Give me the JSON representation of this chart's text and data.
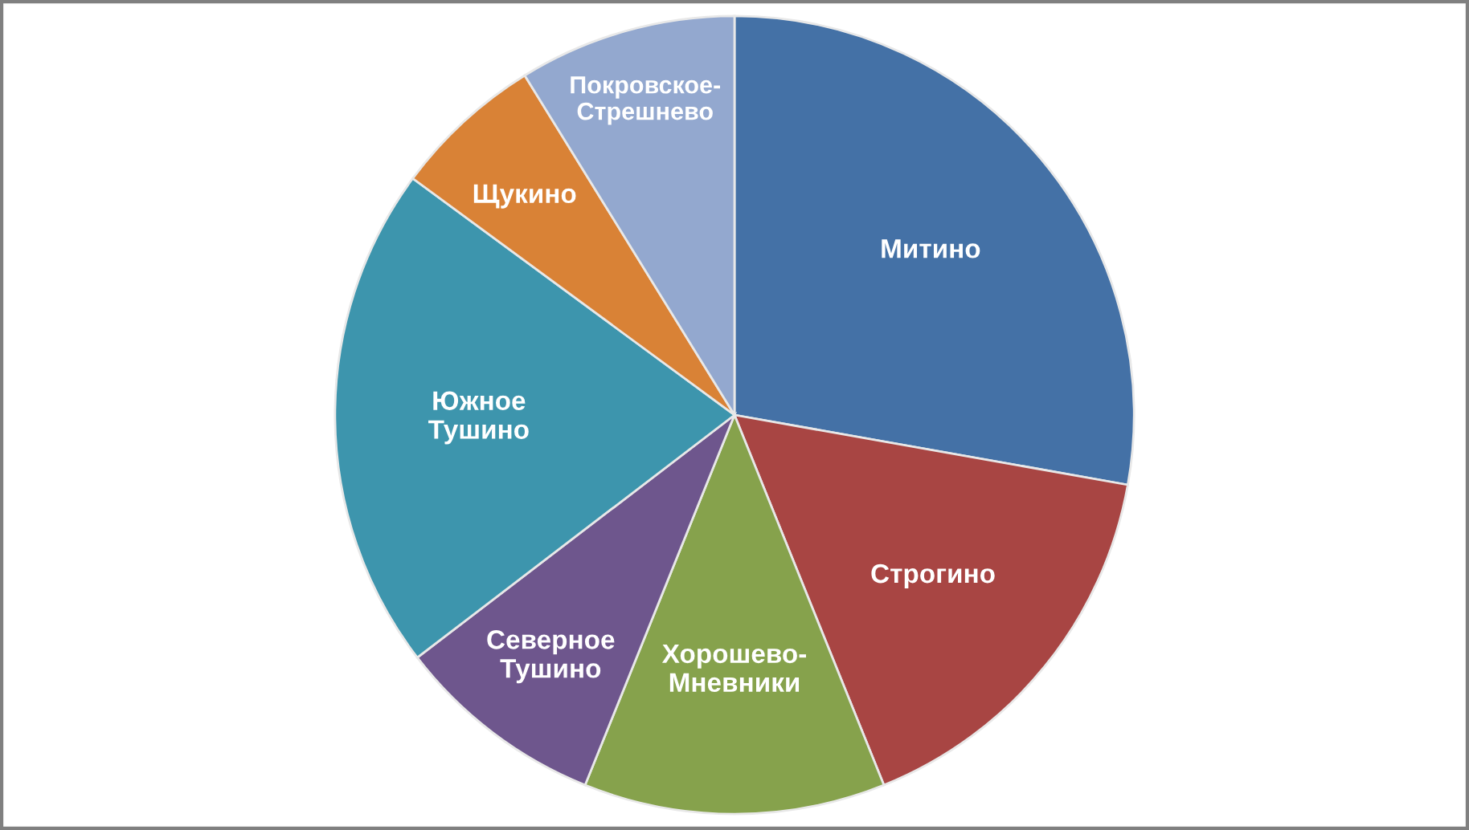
{
  "chart_data": {
    "type": "pie",
    "categories": [
      "Митино",
      "Строгино",
      "Хорошево-Мневники",
      "Северное Тушино",
      "Южное Тушино",
      "Щукино",
      "Покровское-Стрешнево"
    ],
    "values": [
      27.8,
      16.1,
      12.2,
      8.5,
      20.5,
      6.1,
      8.8
    ],
    "colors": [
      "#4471a6",
      "#a84543",
      "#86a24c",
      "#6e568d",
      "#3d95ad",
      "#d98236",
      "#93a8cf"
    ]
  }
}
